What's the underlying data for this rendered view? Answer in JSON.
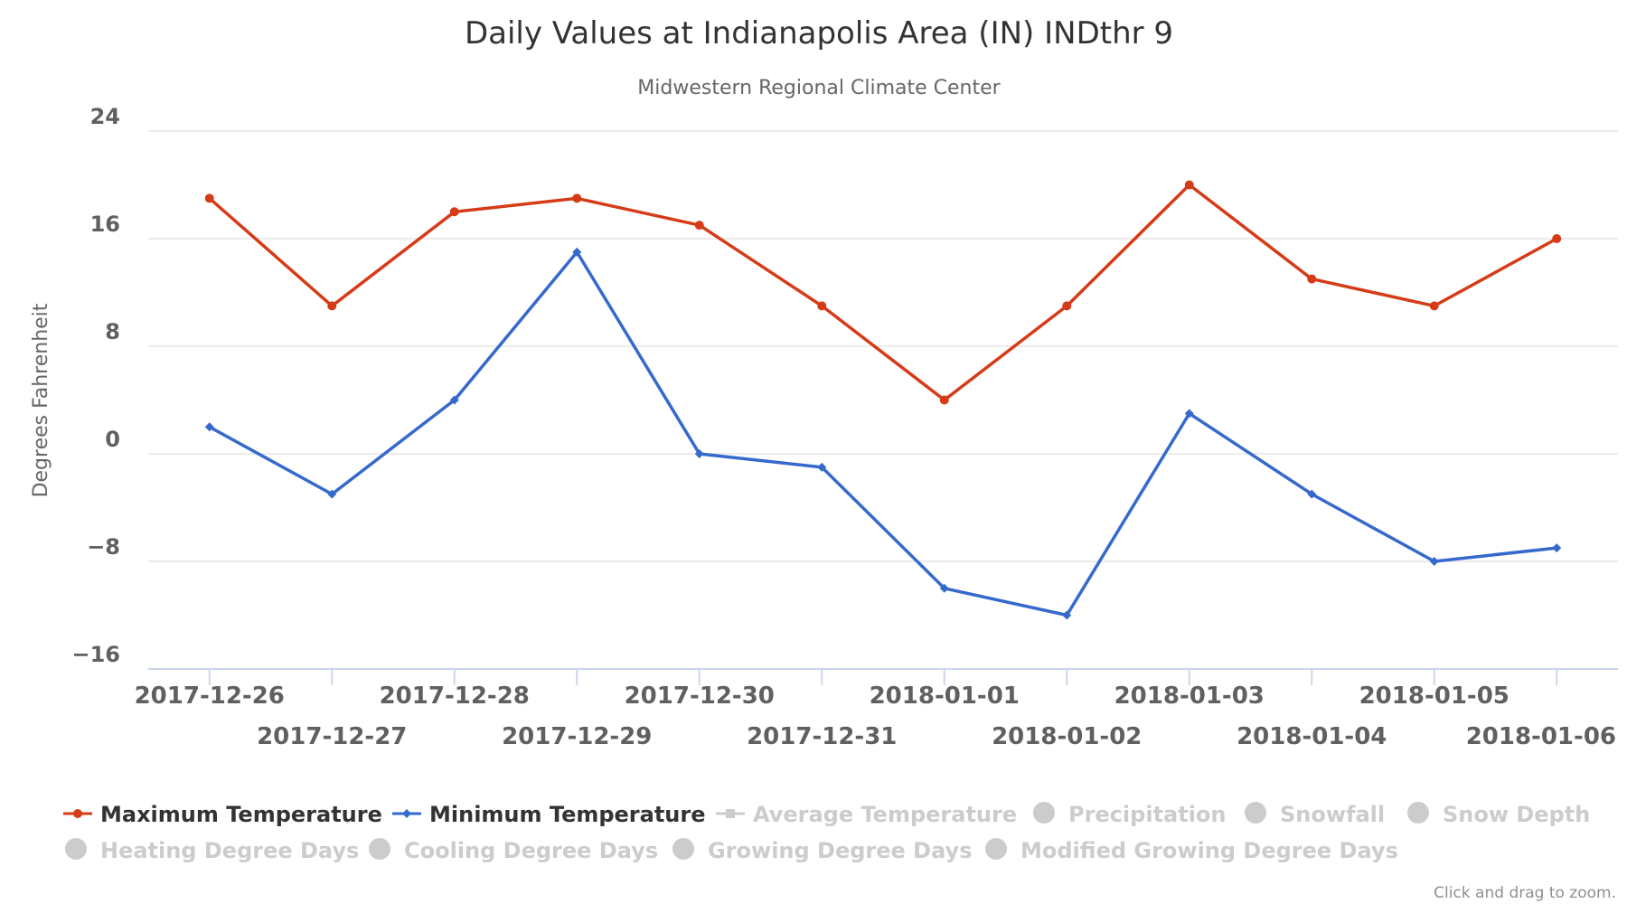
{
  "colors": {
    "max": "#d63b17",
    "min": "#3669cc",
    "disabled": "#cccccc",
    "legend_active_text": "#333333"
  },
  "chart_data": {
    "type": "line",
    "title": "Daily Values at Indianapolis Area (IN) INDthr 9",
    "subtitle": "Midwestern Regional Climate Center",
    "xlabel": "",
    "ylabel": "Degrees Fahrenheit",
    "ylim": [
      -16,
      24
    ],
    "yticks": [
      "24",
      "16",
      "8",
      "0",
      "−8",
      "−16"
    ],
    "ytick_values": [
      24,
      16,
      8,
      0,
      -8,
      -16
    ],
    "categories": [
      "2017-12-26",
      "2017-12-27",
      "2017-12-28",
      "2017-12-29",
      "2017-12-30",
      "2017-12-31",
      "2018-01-01",
      "2018-01-02",
      "2018-01-03",
      "2018-01-04",
      "2018-01-05",
      "2018-01-06"
    ],
    "grid": true,
    "legend_placement": "bottom",
    "series": [
      {
        "name": "Maximum Temperature",
        "values": [
          19,
          11,
          18,
          19,
          17,
          11,
          4,
          11,
          20,
          13,
          11,
          16
        ]
      },
      {
        "name": "Minimum Temperature",
        "values": [
          2,
          -3,
          4,
          15,
          0,
          -1,
          -10,
          -12,
          3,
          -3,
          -8,
          -7
        ]
      }
    ]
  },
  "legend": {
    "items": [
      {
        "label": "Maximum Temperature",
        "icon": "line-circle-marker-icon",
        "active": true,
        "color_key": "max"
      },
      {
        "label": "Minimum Temperature",
        "icon": "line-diamond-marker-icon",
        "active": true,
        "color_key": "min"
      },
      {
        "label": "Average Temperature",
        "icon": "line-square-marker-icon",
        "active": false
      },
      {
        "label": "Precipitation",
        "icon": "circle-icon",
        "active": false
      },
      {
        "label": "Snowfall",
        "icon": "circle-icon",
        "active": false
      },
      {
        "label": "Snow Depth",
        "icon": "circle-icon",
        "active": false
      },
      {
        "label": "Heating Degree Days",
        "icon": "circle-icon",
        "active": false
      },
      {
        "label": "Cooling Degree Days",
        "icon": "circle-icon",
        "active": false
      },
      {
        "label": "Growing Degree Days",
        "icon": "circle-icon",
        "active": false
      },
      {
        "label": "Modified Growing Degree Days",
        "icon": "circle-icon",
        "active": false
      }
    ]
  },
  "credits": "Click and drag to zoom."
}
